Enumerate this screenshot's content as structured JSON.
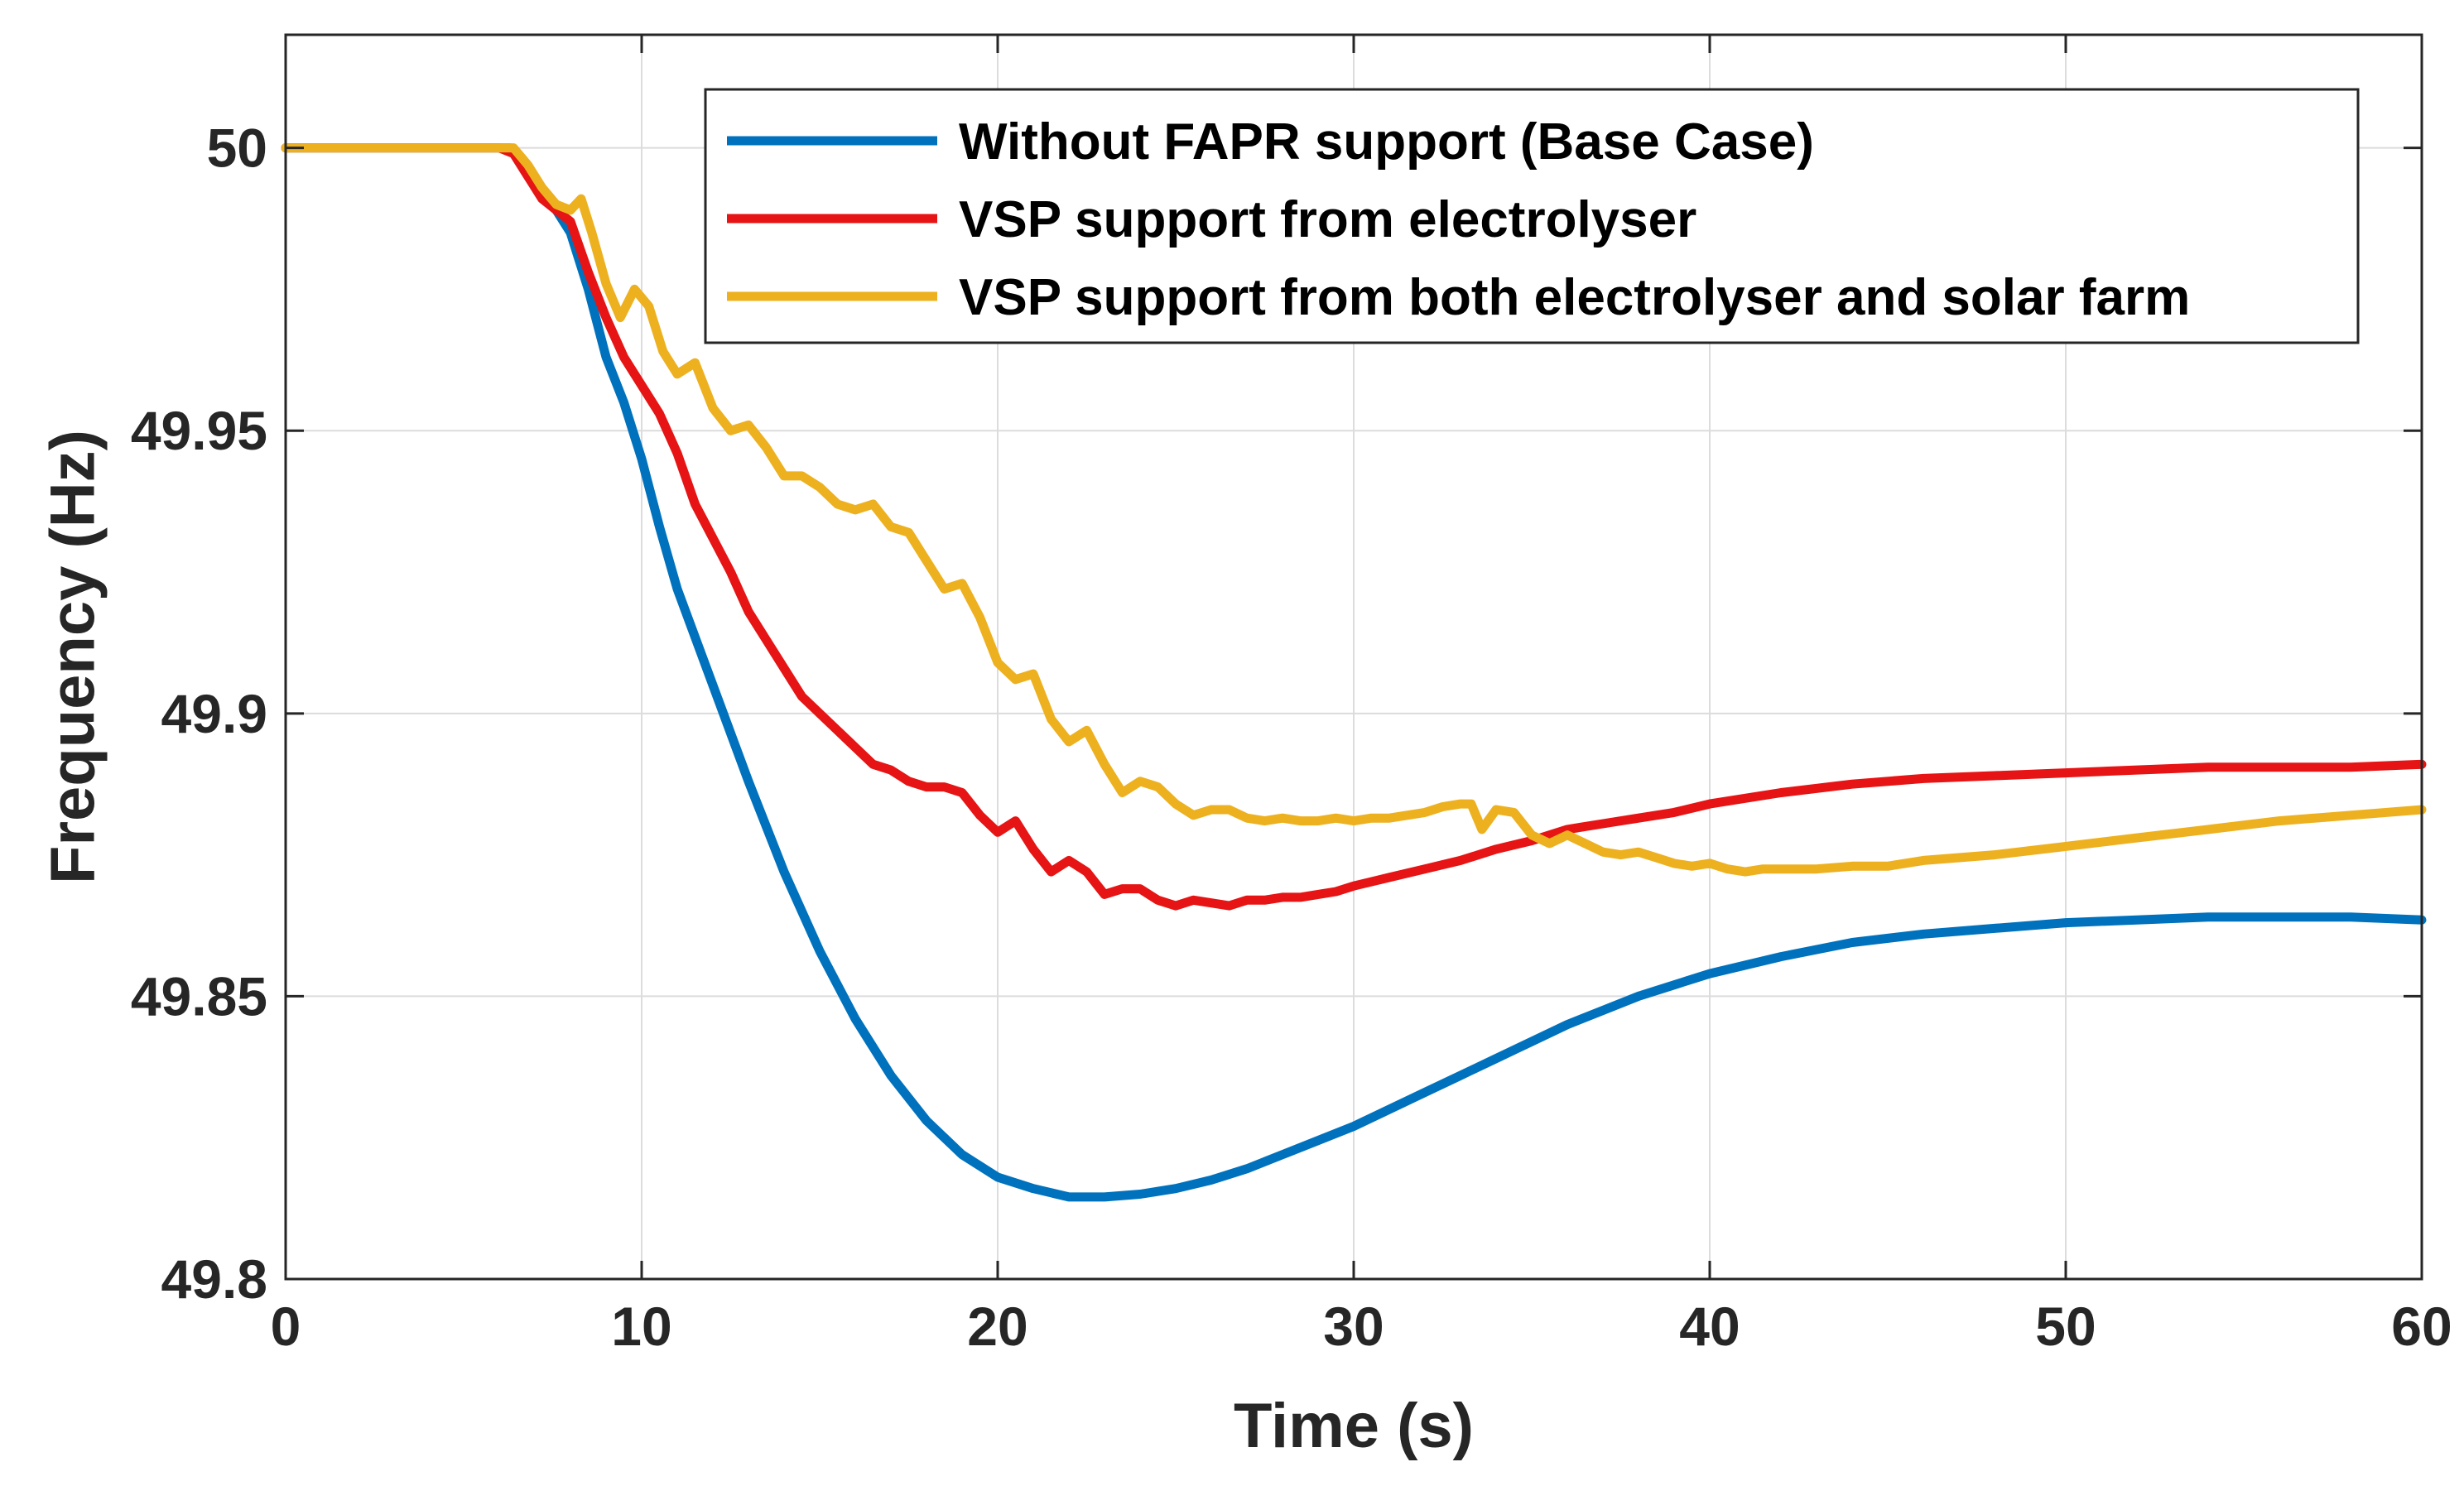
{
  "chart_data": {
    "type": "line",
    "title": "",
    "xlabel": "Time (s)",
    "ylabel": "Frequency (Hz)",
    "xlim": [
      0,
      60
    ],
    "ylim": [
      49.8,
      50.02
    ],
    "xticks": [
      0,
      10,
      20,
      30,
      40,
      50,
      60
    ],
    "xtick_labels": [
      "0",
      "10",
      "20",
      "30",
      "40",
      "50",
      "60"
    ],
    "yticks": [
      49.8,
      49.85,
      49.9,
      49.95,
      50
    ],
    "ytick_labels": [
      "49.8",
      "49.85",
      "49.9",
      "49.95",
      "50"
    ],
    "grid": true,
    "legend_position": "top-right",
    "series": [
      {
        "name": "Without FAPR support (Base Case)",
        "color": "#0072BD",
        "x": [
          0,
          6,
          6.3,
          6.6,
          7,
          7.5,
          8,
          8.5,
          9,
          9.5,
          10,
          10.5,
          11,
          12,
          13,
          14,
          15,
          16,
          17,
          18,
          19,
          20,
          21,
          22,
          23,
          24,
          25,
          26,
          27,
          28,
          29,
          30,
          31,
          32,
          33,
          34,
          35,
          36,
          37,
          38,
          39,
          40,
          42,
          44,
          46,
          48,
          50,
          52,
          54,
          56,
          58,
          60
        ],
        "y": [
          50,
          50,
          50,
          49.998,
          49.994,
          49.99,
          49.985,
          49.975,
          49.963,
          49.955,
          49.945,
          49.933,
          49.922,
          49.905,
          49.888,
          49.872,
          49.858,
          49.846,
          49.836,
          49.828,
          49.822,
          49.818,
          49.816,
          49.8145,
          49.8145,
          49.815,
          49.816,
          49.8175,
          49.8195,
          49.822,
          49.8245,
          49.827,
          49.83,
          49.833,
          49.836,
          49.839,
          49.842,
          49.845,
          49.8475,
          49.85,
          49.852,
          49.854,
          49.857,
          49.8595,
          49.861,
          49.862,
          49.863,
          49.8635,
          49.864,
          49.864,
          49.864,
          49.8635
        ]
      },
      {
        "name": "VSP support from electrolyser",
        "color": "#E61414",
        "x": [
          0,
          6,
          6.4,
          6.8,
          7.2,
          7.6,
          8,
          8.5,
          9,
          9.5,
          10,
          10.5,
          11,
          11.5,
          12,
          12.5,
          13,
          13.5,
          14,
          14.5,
          15,
          15.5,
          16,
          16.5,
          17,
          17.5,
          18,
          18.5,
          19,
          19.5,
          20,
          20.5,
          21,
          21.5,
          22,
          22.5,
          23,
          23.5,
          24,
          24.5,
          25,
          25.5,
          26,
          26.5,
          27,
          27.5,
          28,
          28.5,
          29,
          29.5,
          30,
          31,
          32,
          33,
          34,
          35,
          36,
          37,
          38,
          39,
          40,
          42,
          44,
          46,
          48,
          50,
          52,
          54,
          56,
          58,
          60
        ],
        "y": [
          50,
          50,
          49.999,
          49.995,
          49.991,
          49.989,
          49.987,
          49.978,
          49.97,
          49.963,
          49.958,
          49.953,
          49.946,
          49.937,
          49.931,
          49.925,
          49.918,
          49.913,
          49.908,
          49.903,
          49.9,
          49.897,
          49.894,
          49.891,
          49.89,
          49.888,
          49.887,
          49.887,
          49.886,
          49.882,
          49.879,
          49.881,
          49.876,
          49.872,
          49.874,
          49.872,
          49.868,
          49.869,
          49.869,
          49.867,
          49.866,
          49.867,
          49.8665,
          49.866,
          49.867,
          49.867,
          49.8675,
          49.8675,
          49.868,
          49.8685,
          49.8695,
          49.871,
          49.8725,
          49.874,
          49.876,
          49.8775,
          49.8795,
          49.8805,
          49.8815,
          49.8825,
          49.884,
          49.886,
          49.8875,
          49.8885,
          49.889,
          49.8895,
          49.89,
          49.8905,
          49.8905,
          49.8905,
          49.891
        ]
      },
      {
        "name": "VSP support from both electrolyser and solar farm",
        "color": "#EDB120",
        "x": [
          0,
          6,
          6.4,
          6.8,
          7.2,
          7.6,
          8,
          8.3,
          8.6,
          9,
          9.4,
          9.8,
          10.2,
          10.6,
          11,
          11.5,
          12,
          12.5,
          13,
          13.5,
          14,
          14.5,
          15,
          15.5,
          16,
          16.5,
          17,
          17.5,
          18,
          18.5,
          19,
          19.5,
          20,
          20.5,
          21,
          21.5,
          22,
          22.5,
          23,
          23.5,
          24,
          24.5,
          25,
          25.5,
          26,
          26.5,
          27,
          27.5,
          28,
          28.5,
          29,
          29.5,
          30,
          30.5,
          31,
          31.5,
          32,
          32.5,
          33,
          33.3,
          33.6,
          34,
          34.5,
          35,
          35.5,
          36,
          36.5,
          37,
          37.5,
          38,
          38.5,
          39,
          39.5,
          40,
          40.5,
          41,
          41.5,
          42,
          43,
          44,
          45,
          46,
          48,
          50,
          52,
          54,
          56,
          58,
          60
        ],
        "y": [
          50,
          50,
          50,
          49.997,
          49.993,
          49.99,
          49.989,
          49.991,
          49.985,
          49.976,
          49.97,
          49.975,
          49.972,
          49.964,
          49.96,
          49.962,
          49.954,
          49.95,
          49.951,
          49.947,
          49.942,
          49.942,
          49.94,
          49.937,
          49.936,
          49.937,
          49.933,
          49.932,
          49.927,
          49.922,
          49.923,
          49.917,
          49.909,
          49.906,
          49.907,
          49.899,
          49.895,
          49.897,
          49.891,
          49.886,
          49.888,
          49.887,
          49.884,
          49.882,
          49.883,
          49.883,
          49.8815,
          49.881,
          49.8815,
          49.881,
          49.881,
          49.8815,
          49.881,
          49.8815,
          49.8815,
          49.882,
          49.8825,
          49.8835,
          49.884,
          49.884,
          49.8795,
          49.883,
          49.8825,
          49.8785,
          49.877,
          49.8785,
          49.877,
          49.8755,
          49.875,
          49.8755,
          49.8745,
          49.8735,
          49.873,
          49.8735,
          49.8725,
          49.872,
          49.8725,
          49.8725,
          49.8725,
          49.873,
          49.873,
          49.874,
          49.875,
          49.8765,
          49.878,
          49.8795,
          49.881,
          49.882,
          49.883
        ]
      }
    ]
  }
}
